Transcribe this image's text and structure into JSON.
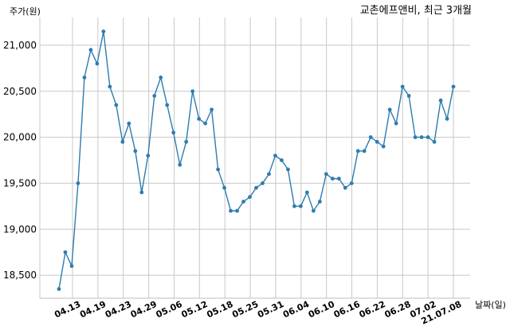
{
  "chart_data": {
    "type": "line",
    "title": "교촌에프앤비, 최근 3개월",
    "xlabel": "날짜(일)",
    "ylabel": "주가(원)",
    "grid": true,
    "ylim": [
      18250,
      21250
    ],
    "yticks": [
      "18,500",
      "19,000",
      "19,500",
      "20,000",
      "20,500",
      "21,000"
    ],
    "xticks": [
      "04.13",
      "04.19",
      "04.23",
      "04.29",
      "05.06",
      "05.12",
      "05.18",
      "05.25",
      "05.31",
      "06.04",
      "06.10",
      "06.16",
      "06.22",
      "06.28",
      "07.02",
      "21.07.08"
    ],
    "series": [
      {
        "color": "#2e7cb0",
        "values": [
          18350,
          18750,
          18600,
          19500,
          20650,
          20950,
          20800,
          21150,
          20550,
          20350,
          19950,
          20150,
          19850,
          19400,
          19800,
          20450,
          20650,
          20350,
          20050,
          19700,
          19950,
          20500,
          20200,
          20150,
          20300,
          19650,
          19450,
          19200,
          19200,
          19300,
          19350,
          19450,
          19500,
          19600,
          19800,
          19750,
          19650,
          19250,
          19250,
          19400,
          19200,
          19300,
          19600,
          19550,
          19550,
          19450,
          19500,
          19850,
          19850,
          20000,
          19950,
          19900,
          20300,
          20150,
          20550,
          20450,
          20000,
          20000,
          20000,
          19950,
          20400,
          20200,
          20550
        ]
      }
    ]
  }
}
